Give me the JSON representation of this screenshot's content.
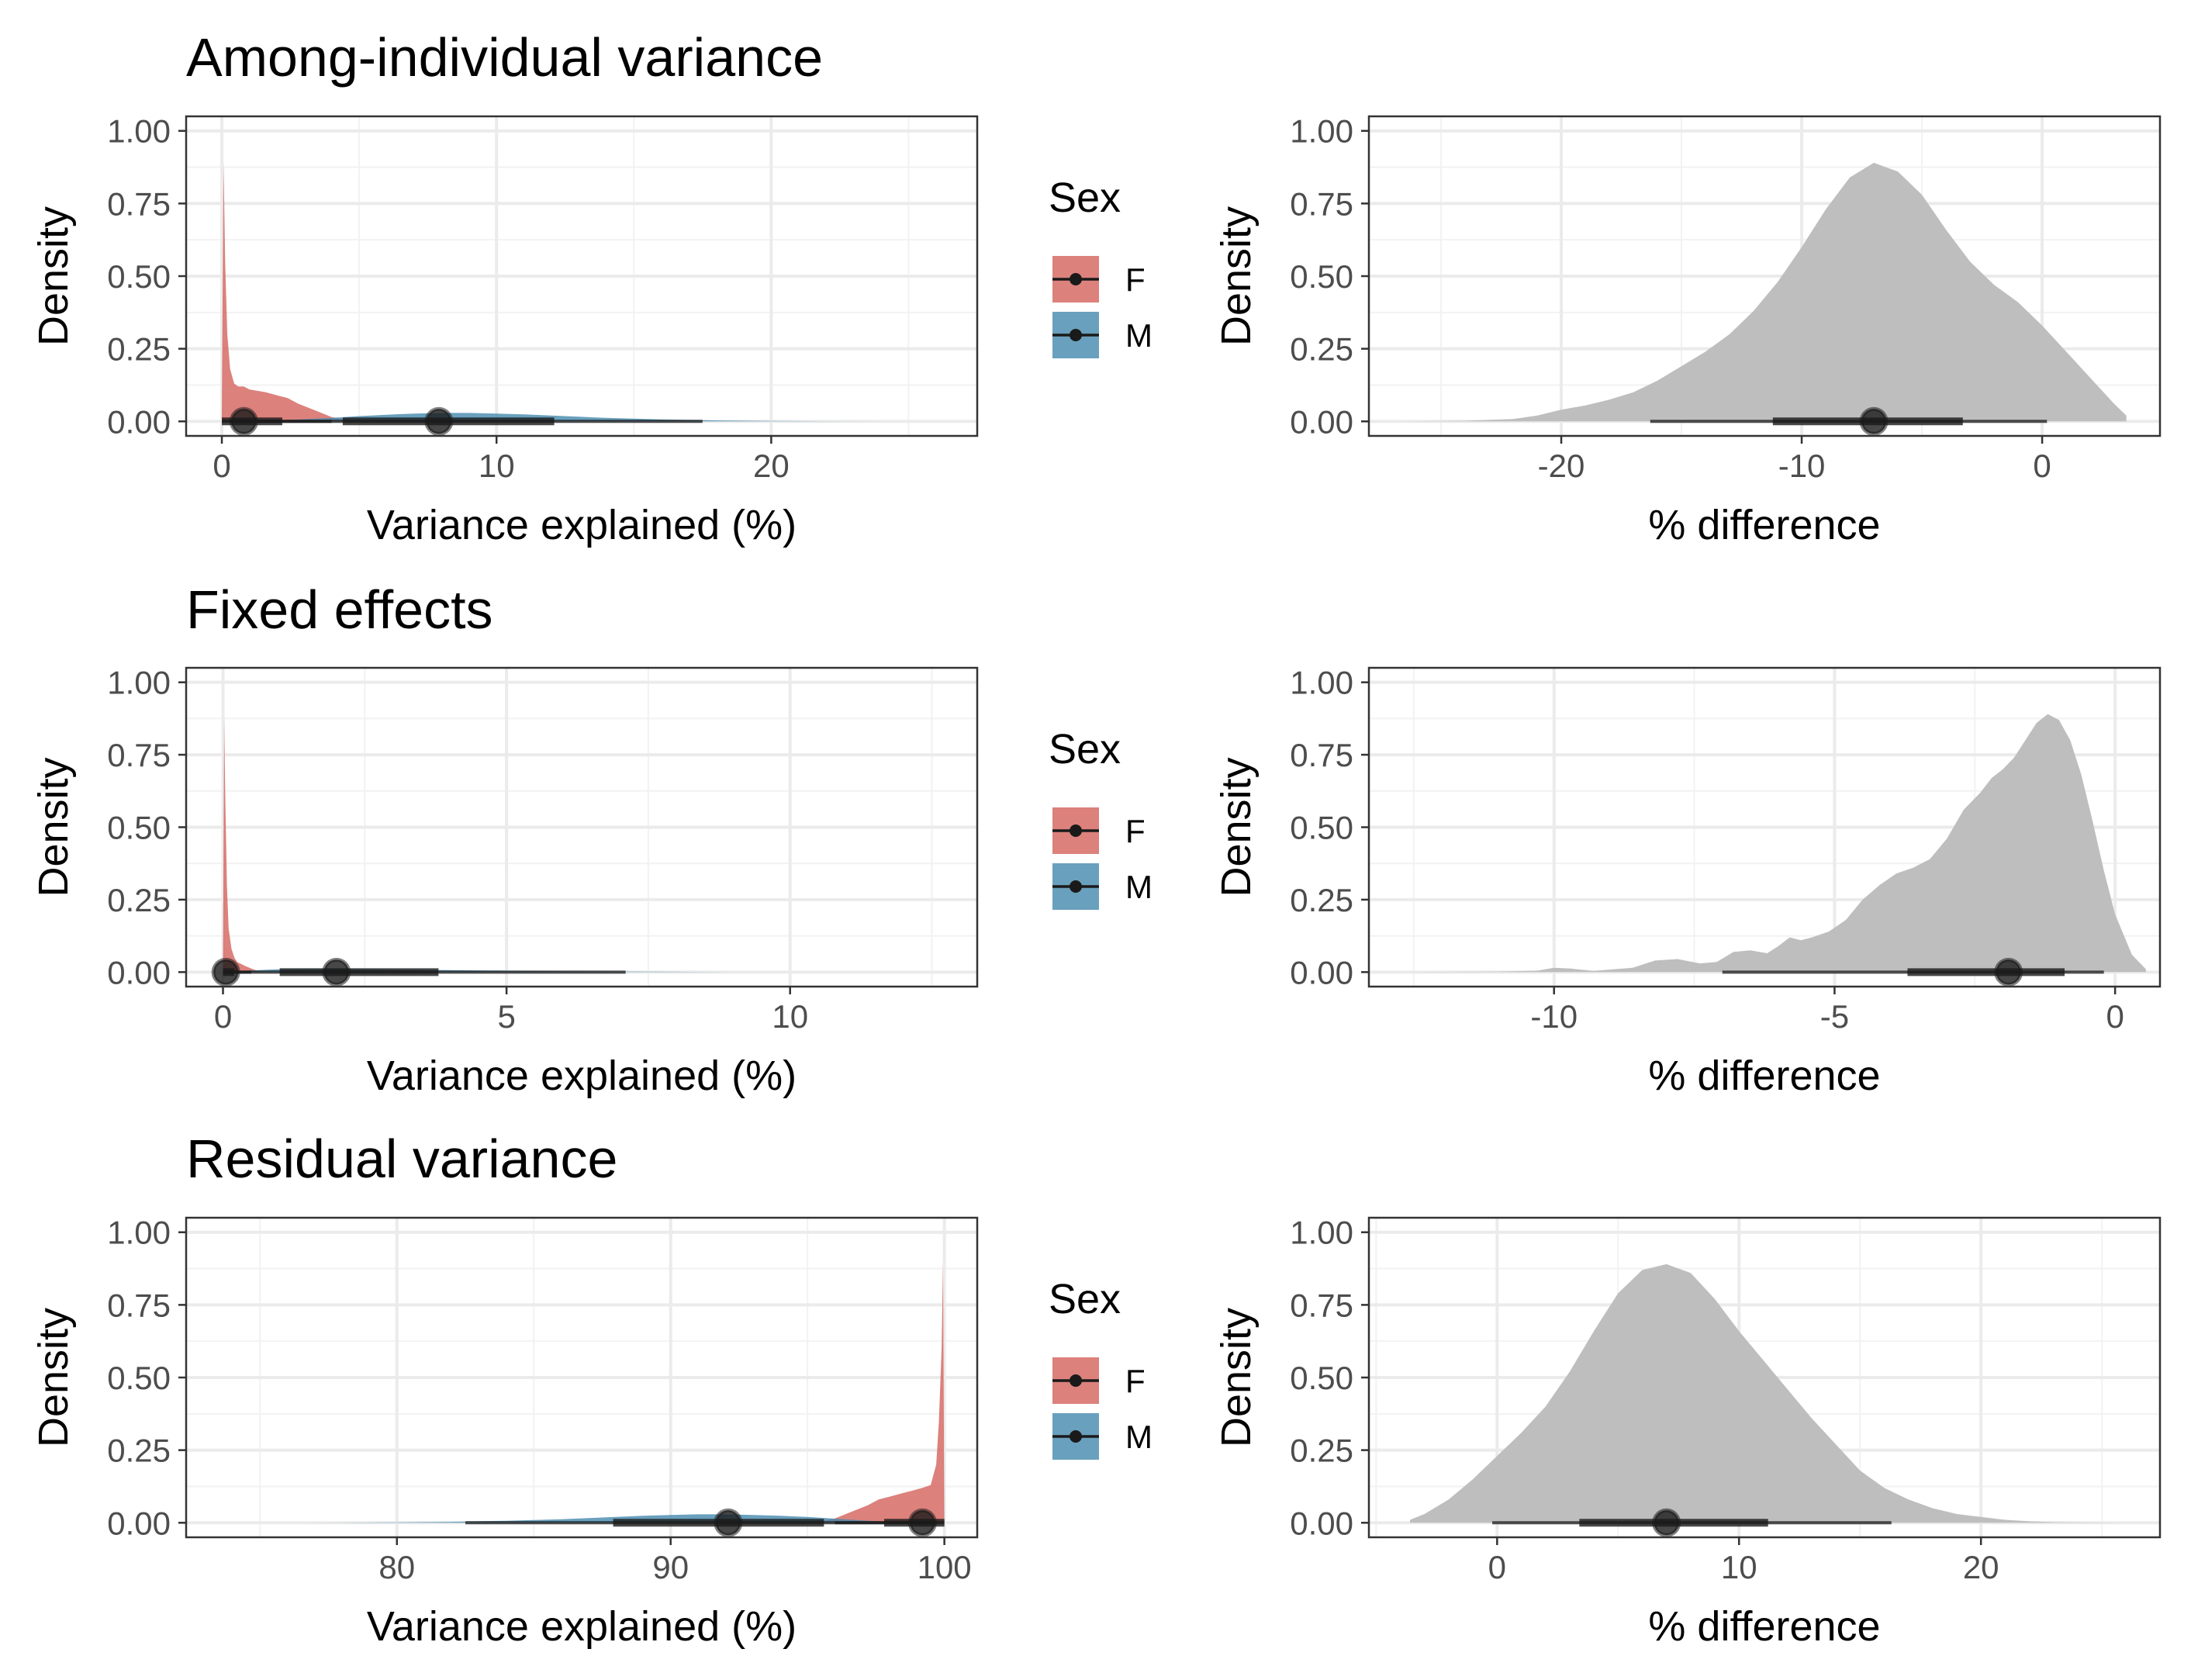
{
  "colors": {
    "F": "#d3625b",
    "M": "#4488ad",
    "difference": "#bebebe",
    "grid_major": "#ebebeb",
    "grid_minor": "#f2f2f2",
    "panel_border": "#333333",
    "interval": "#1a1a1a"
  },
  "legend": {
    "title": "Sex",
    "items": [
      {
        "key": "F",
        "label": "F"
      },
      {
        "key": "M",
        "label": "M"
      }
    ]
  },
  "chart_data": [
    {
      "type": "area",
      "row": 0,
      "title": "Among-individual variance",
      "xlabel": "Variance explained (%)",
      "ylabel": "Density",
      "xlim": [
        -1.3,
        27.5
      ],
      "ylim": [
        -0.05,
        1.05
      ],
      "x_ticks": [
        0,
        10,
        20
      ],
      "x_tick_labels": [
        "0",
        "10",
        "20"
      ],
      "y_ticks": [
        0,
        0.25,
        0.5,
        0.75,
        1
      ],
      "y_tick_labels": [
        "0.00",
        "0.25",
        "0.50",
        "0.75",
        "1.00"
      ],
      "grid": true,
      "legend_position": "right",
      "series": [
        {
          "name": "F",
          "color_key": "F",
          "x": [
            0,
            0.06,
            0.12,
            0.2,
            0.3,
            0.45,
            0.6,
            0.8,
            1.0,
            1.3,
            1.6,
            2.0,
            2.4,
            2.8,
            3.2,
            3.6,
            4.0,
            4.4,
            4.8,
            5.2
          ],
          "y": [
            0,
            0.9,
            0.55,
            0.3,
            0.18,
            0.13,
            0.12,
            0.12,
            0.11,
            0.105,
            0.1,
            0.09,
            0.08,
            0.06,
            0.045,
            0.03,
            0.015,
            0.008,
            0.003,
            0
          ],
          "point": 0.8,
          "inner": [
            0,
            2.2
          ],
          "outer": [
            0,
            4.0
          ]
        },
        {
          "name": "M",
          "color_key": "M",
          "x": [
            0,
            2,
            4,
            5,
            6,
            7,
            8,
            9,
            10,
            11,
            12,
            13,
            14,
            16,
            18,
            20,
            22,
            24
          ],
          "y": [
            0,
            0.003,
            0.012,
            0.018,
            0.023,
            0.027,
            0.029,
            0.029,
            0.027,
            0.024,
            0.02,
            0.016,
            0.012,
            0.007,
            0.003,
            0.0015,
            0.0005,
            0
          ],
          "point": 7.9,
          "inner": [
            4.4,
            12.1
          ],
          "outer": [
            0.3,
            17.5
          ]
        }
      ]
    },
    {
      "type": "area",
      "row": 0,
      "title": "",
      "xlabel": "% difference",
      "ylabel": "Density",
      "xlim": [
        -28.0,
        4.9
      ],
      "ylim": [
        -0.05,
        1.05
      ],
      "x_ticks": [
        -20,
        -10,
        0
      ],
      "x_tick_labels": [
        "-20",
        "-10",
        "0"
      ],
      "y_ticks": [
        0,
        0.25,
        0.5,
        0.75,
        1
      ],
      "y_tick_labels": [
        "0.00",
        "0.25",
        "0.50",
        "0.75",
        "1.00"
      ],
      "grid": true,
      "series": [
        {
          "name": "",
          "color_key": "difference",
          "x": [
            -26.5,
            -24,
            -22,
            -21,
            -20,
            -19,
            -18,
            -17,
            -16,
            -15,
            -14,
            -13,
            -12,
            -11,
            -10,
            -9,
            -8,
            -7,
            -6,
            -5,
            -4,
            -3,
            -2,
            -1,
            0,
            1,
            2,
            3,
            3.5
          ],
          "y": [
            0,
            0.002,
            0.008,
            0.02,
            0.04,
            0.055,
            0.075,
            0.1,
            0.14,
            0.19,
            0.24,
            0.3,
            0.38,
            0.48,
            0.6,
            0.73,
            0.84,
            0.89,
            0.86,
            0.78,
            0.66,
            0.55,
            0.47,
            0.41,
            0.33,
            0.24,
            0.15,
            0.06,
            0.02
          ],
          "point": -7.0,
          "inner": [
            -11.2,
            -3.3
          ],
          "outer": [
            -16.3,
            0.2
          ]
        }
      ]
    },
    {
      "type": "area",
      "row": 1,
      "title": "Fixed effects",
      "xlabel": "Variance explained (%)",
      "ylabel": "Density",
      "xlim": [
        -0.65,
        13.3
      ],
      "ylim": [
        -0.05,
        1.05
      ],
      "x_ticks": [
        0,
        5,
        10
      ],
      "x_tick_labels": [
        "0",
        "5",
        "10"
      ],
      "y_ticks": [
        0,
        0.25,
        0.5,
        0.75,
        1
      ],
      "y_tick_labels": [
        "0.00",
        "0.25",
        "0.50",
        "0.75",
        "1.00"
      ],
      "grid": true,
      "legend_position": "right",
      "series": [
        {
          "name": "F",
          "color_key": "F",
          "x": [
            0,
            0.02,
            0.04,
            0.07,
            0.1,
            0.15,
            0.2,
            0.25,
            0.3,
            0.4,
            0.5,
            0.6,
            0.7
          ],
          "y": [
            0,
            0.88,
            0.6,
            0.3,
            0.15,
            0.08,
            0.05,
            0.035,
            0.03,
            0.02,
            0.012,
            0.005,
            0
          ],
          "point": 0.05,
          "inner": [
            0,
            0.2
          ],
          "outer": [
            0,
            0.5
          ]
        },
        {
          "name": "M",
          "color_key": "M",
          "x": [
            0,
            0.5,
            1,
            1.5,
            2,
            2.5,
            3,
            4,
            5,
            6,
            7,
            8,
            9
          ],
          "y": [
            0,
            0.006,
            0.01,
            0.011,
            0.011,
            0.01,
            0.009,
            0.007,
            0.005,
            0.003,
            0.002,
            0.001,
            0
          ],
          "point": 2.0,
          "inner": [
            1.0,
            3.8
          ],
          "outer": [
            0.1,
            7.1
          ]
        }
      ]
    },
    {
      "type": "area",
      "row": 1,
      "title": "",
      "xlabel": "% difference",
      "ylabel": "Density",
      "xlim": [
        -13.3,
        0.8
      ],
      "ylim": [
        -0.05,
        1.05
      ],
      "x_ticks": [
        -10,
        -5,
        0
      ],
      "x_tick_labels": [
        "-10",
        "-5",
        "0"
      ],
      "y_ticks": [
        0,
        0.25,
        0.5,
        0.75,
        1
      ],
      "y_tick_labels": [
        "0.00",
        "0.25",
        "0.50",
        "0.75",
        "1.00"
      ],
      "grid": true,
      "series": [
        {
          "name": "",
          "color_key": "difference",
          "x": [
            -12.8,
            -11,
            -10.3,
            -10,
            -9.7,
            -9.3,
            -8.6,
            -8.2,
            -7.8,
            -7.4,
            -7.1,
            -6.8,
            -6.5,
            -6.2,
            -6.0,
            -5.8,
            -5.6,
            -5.4,
            -5.1,
            -4.8,
            -4.5,
            -4.2,
            -3.9,
            -3.6,
            -3.3,
            -3.0,
            -2.7,
            -2.4,
            -2.2,
            -2.0,
            -1.8,
            -1.6,
            -1.4,
            -1.2,
            -1.0,
            -0.8,
            -0.6,
            -0.4,
            -0.2,
            0,
            0.3,
            0.55
          ],
          "y": [
            0,
            0.002,
            0.005,
            0.015,
            0.012,
            0.004,
            0.015,
            0.04,
            0.045,
            0.03,
            0.035,
            0.07,
            0.075,
            0.065,
            0.09,
            0.12,
            0.11,
            0.12,
            0.14,
            0.18,
            0.25,
            0.3,
            0.34,
            0.36,
            0.39,
            0.46,
            0.56,
            0.62,
            0.67,
            0.7,
            0.74,
            0.8,
            0.86,
            0.89,
            0.87,
            0.8,
            0.68,
            0.52,
            0.35,
            0.2,
            0.06,
            0.01
          ],
          "point": -1.9,
          "inner": [
            -3.7,
            -0.9
          ],
          "outer": [
            -7.0,
            -0.2
          ]
        }
      ]
    },
    {
      "type": "area",
      "row": 2,
      "title": "Residual variance",
      "xlabel": "Variance explained (%)",
      "ylabel": "Density",
      "xlim": [
        72.3,
        101.2
      ],
      "ylim": [
        -0.05,
        1.05
      ],
      "x_ticks": [
        80,
        90,
        100
      ],
      "x_tick_labels": [
        "80",
        "90",
        "100"
      ],
      "y_ticks": [
        0,
        0.25,
        0.5,
        0.75,
        1
      ],
      "y_tick_labels": [
        "0.00",
        "0.25",
        "0.50",
        "0.75",
        "1.00"
      ],
      "grid": true,
      "legend_position": "right",
      "series": [
        {
          "name": "F",
          "color_key": "F",
          "x": [
            94.8,
            95.2,
            95.6,
            96.0,
            96.4,
            96.8,
            97.2,
            97.6,
            98.0,
            98.4,
            98.8,
            99.2,
            99.5,
            99.7,
            99.8,
            99.9,
            99.95,
            100
          ],
          "y": [
            0,
            0.003,
            0.008,
            0.015,
            0.03,
            0.045,
            0.06,
            0.08,
            0.09,
            0.1,
            0.11,
            0.12,
            0.13,
            0.2,
            0.35,
            0.6,
            0.9,
            0
          ],
          "point": 99.2,
          "inner": [
            97.8,
            100
          ],
          "outer": [
            96.0,
            100
          ]
        },
        {
          "name": "M",
          "color_key": "M",
          "x": [
            76,
            78,
            80,
            82,
            84,
            86,
            87,
            88,
            89,
            90,
            91,
            92,
            93,
            94,
            95,
            96,
            97,
            98,
            99.2
          ],
          "y": [
            0,
            0.0005,
            0.0015,
            0.003,
            0.007,
            0.012,
            0.016,
            0.02,
            0.024,
            0.027,
            0.029,
            0.029,
            0.027,
            0.024,
            0.02,
            0.014,
            0.008,
            0.003,
            0
          ],
          "point": 92.1,
          "inner": [
            87.9,
            95.6
          ],
          "outer": [
            82.5,
            99.7
          ]
        }
      ]
    },
    {
      "type": "area",
      "row": 2,
      "title": "",
      "xlabel": "% difference",
      "ylabel": "Density",
      "xlim": [
        -5.3,
        27.4
      ],
      "ylim": [
        -0.05,
        1.05
      ],
      "x_ticks": [
        0,
        10,
        20
      ],
      "x_tick_labels": [
        "0",
        "10",
        "20"
      ],
      "y_ticks": [
        0,
        0.25,
        0.5,
        0.75,
        1
      ],
      "y_tick_labels": [
        "0.00",
        "0.25",
        "0.50",
        "0.75",
        "1.00"
      ],
      "grid": true,
      "series": [
        {
          "name": "",
          "color_key": "difference",
          "x": [
            -3.6,
            -3,
            -2,
            -1,
            0,
            1,
            2,
            3,
            4,
            5,
            6,
            7,
            8,
            9,
            10,
            11,
            12,
            13,
            14,
            15,
            16,
            17,
            18,
            19,
            20,
            21,
            22,
            23,
            24,
            26
          ],
          "y": [
            0.01,
            0.03,
            0.08,
            0.15,
            0.23,
            0.31,
            0.4,
            0.52,
            0.66,
            0.79,
            0.87,
            0.89,
            0.86,
            0.77,
            0.66,
            0.56,
            0.46,
            0.36,
            0.27,
            0.18,
            0.12,
            0.08,
            0.05,
            0.03,
            0.02,
            0.01,
            0.005,
            0.002,
            0.001,
            0
          ],
          "point": 7.0,
          "inner": [
            3.4,
            11.2
          ],
          "outer": [
            -0.2,
            16.3
          ]
        }
      ]
    }
  ]
}
